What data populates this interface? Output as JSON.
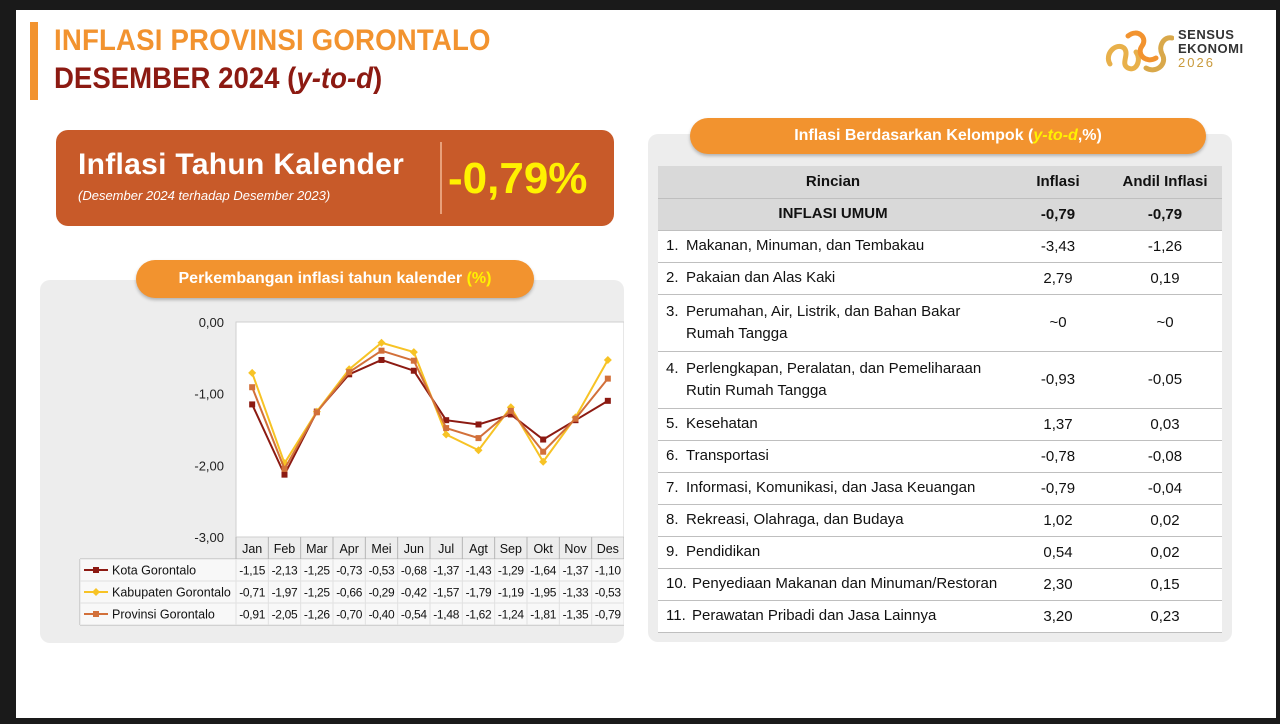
{
  "header": {
    "title_line1": "INFLASI PROVINSI GORONTALO",
    "title_line2_main": "DESEMBER 2024 ",
    "title_line2_open": "(",
    "title_line2_ital": "y-to-d",
    "title_line2_close": ")"
  },
  "logo": {
    "line1": "SENSUS",
    "line2": "EKONOMI",
    "line3": "2026"
  },
  "kpi": {
    "label": "Inflasi Tahun Kalender",
    "sublabel": "(Desember 2024 terhadap Desember 2023)",
    "value": "-0,79%"
  },
  "chart_panel": {
    "title_main": "Perkembangan inflasi tahun kalender ",
    "title_unit": "(%)"
  },
  "table_panel": {
    "title_main": "Inflasi Berdasarkan Kelompok (",
    "title_ital": "y-to-d",
    "title_end": ",%)"
  },
  "chart_data": {
    "type": "line",
    "categories": [
      "Jan",
      "Feb",
      "Mar",
      "Apr",
      "Mei",
      "Jun",
      "Jul",
      "Agt",
      "Sep",
      "Okt",
      "Nov",
      "Des"
    ],
    "ylim": [
      -3,
      0
    ],
    "yticks": [
      "0,00",
      "-1,00",
      "-2,00",
      "-3,00"
    ],
    "grid": false,
    "legend": "table-below",
    "series": [
      {
        "name": "Kota Gorontalo",
        "color": "#8c1a12",
        "marker": "square",
        "values": [
          -1.15,
          -2.13,
          -1.25,
          -0.73,
          -0.53,
          -0.68,
          -1.37,
          -1.43,
          -1.29,
          -1.64,
          -1.37,
          -1.1
        ],
        "labels": [
          "-1,15",
          "-2,13",
          "-1,25",
          "-0,73",
          "-0,53",
          "-0,68",
          "-1,37",
          "-1,43",
          "-1,29",
          "-1,64",
          "-1,37",
          "-1,10"
        ]
      },
      {
        "name": "Kabupaten Gorontalo",
        "color": "#f7c325",
        "marker": "diamond",
        "values": [
          -0.71,
          -1.97,
          -1.25,
          -0.66,
          -0.29,
          -0.42,
          -1.57,
          -1.79,
          -1.19,
          -1.95,
          -1.33,
          -0.53
        ],
        "labels": [
          "-0,71",
          "-1,97",
          "-1,25",
          "-0,66",
          "-0,29",
          "-0,42",
          "-1,57",
          "-1,79",
          "-1,19",
          "-1,95",
          "-1,33",
          "-0,53"
        ]
      },
      {
        "name": "Provinsi Gorontalo",
        "color": "#d2703a",
        "marker": "square",
        "values": [
          -0.91,
          -2.05,
          -1.26,
          -0.7,
          -0.4,
          -0.54,
          -1.48,
          -1.62,
          -1.24,
          -1.81,
          -1.35,
          -0.79
        ],
        "labels": [
          "-0,91",
          "-2,05",
          "-1,26",
          "-0,70",
          "-0,40",
          "-0,54",
          "-1,48",
          "-1,62",
          "-1,24",
          "-1,81",
          "-1,35",
          "-0,79"
        ]
      }
    ]
  },
  "table": {
    "headers": [
      "Rincian",
      "Inflasi",
      "Andil Inflasi"
    ],
    "umum": {
      "label": "INFLASI UMUM",
      "inflasi": "-0,79",
      "andil": "-0,79"
    },
    "rows": [
      {
        "no": "1.",
        "label": "Makanan, Minuman, dan Tembakau",
        "inflasi": "-3,43",
        "andil": "-1,26"
      },
      {
        "no": "2.",
        "label": "Pakaian dan Alas Kaki",
        "inflasi": "2,79",
        "andil": "0,19"
      },
      {
        "no": "3.",
        "label": "Perumahan, Air, Listrik, dan Bahan Bakar",
        "label2": "Rumah Tangga",
        "inflasi": "~0",
        "andil": "~0"
      },
      {
        "no": "4.",
        "label": "Perlengkapan, Peralatan, dan Pemeliharaan",
        "label2": "Rutin Rumah Tangga",
        "inflasi": "-0,93",
        "andil": "-0,05"
      },
      {
        "no": "5.",
        "label": "Kesehatan",
        "inflasi": "1,37",
        "andil": "0,03"
      },
      {
        "no": "6.",
        "label": "Transportasi",
        "inflasi": "-0,78",
        "andil": "-0,08"
      },
      {
        "no": "7.",
        "label": "Informasi, Komunikasi, dan Jasa Keuangan",
        "inflasi": "-0,79",
        "andil": "-0,04"
      },
      {
        "no": "8.",
        "label": "Rekreasi, Olahraga, dan Budaya",
        "inflasi": "1,02",
        "andil": "0,02"
      },
      {
        "no": "9.",
        "label": "Pendidikan",
        "inflasi": "0,54",
        "andil": "0,02"
      },
      {
        "no": "10.",
        "label": "Penyediaan Makanan dan Minuman/Restoran",
        "inflasi": "2,30",
        "andil": "0,15"
      },
      {
        "no": "11.",
        "label": "Perawatan Pribadi dan Jasa Lainnya",
        "inflasi": "3,20",
        "andil": "0,23"
      }
    ]
  }
}
